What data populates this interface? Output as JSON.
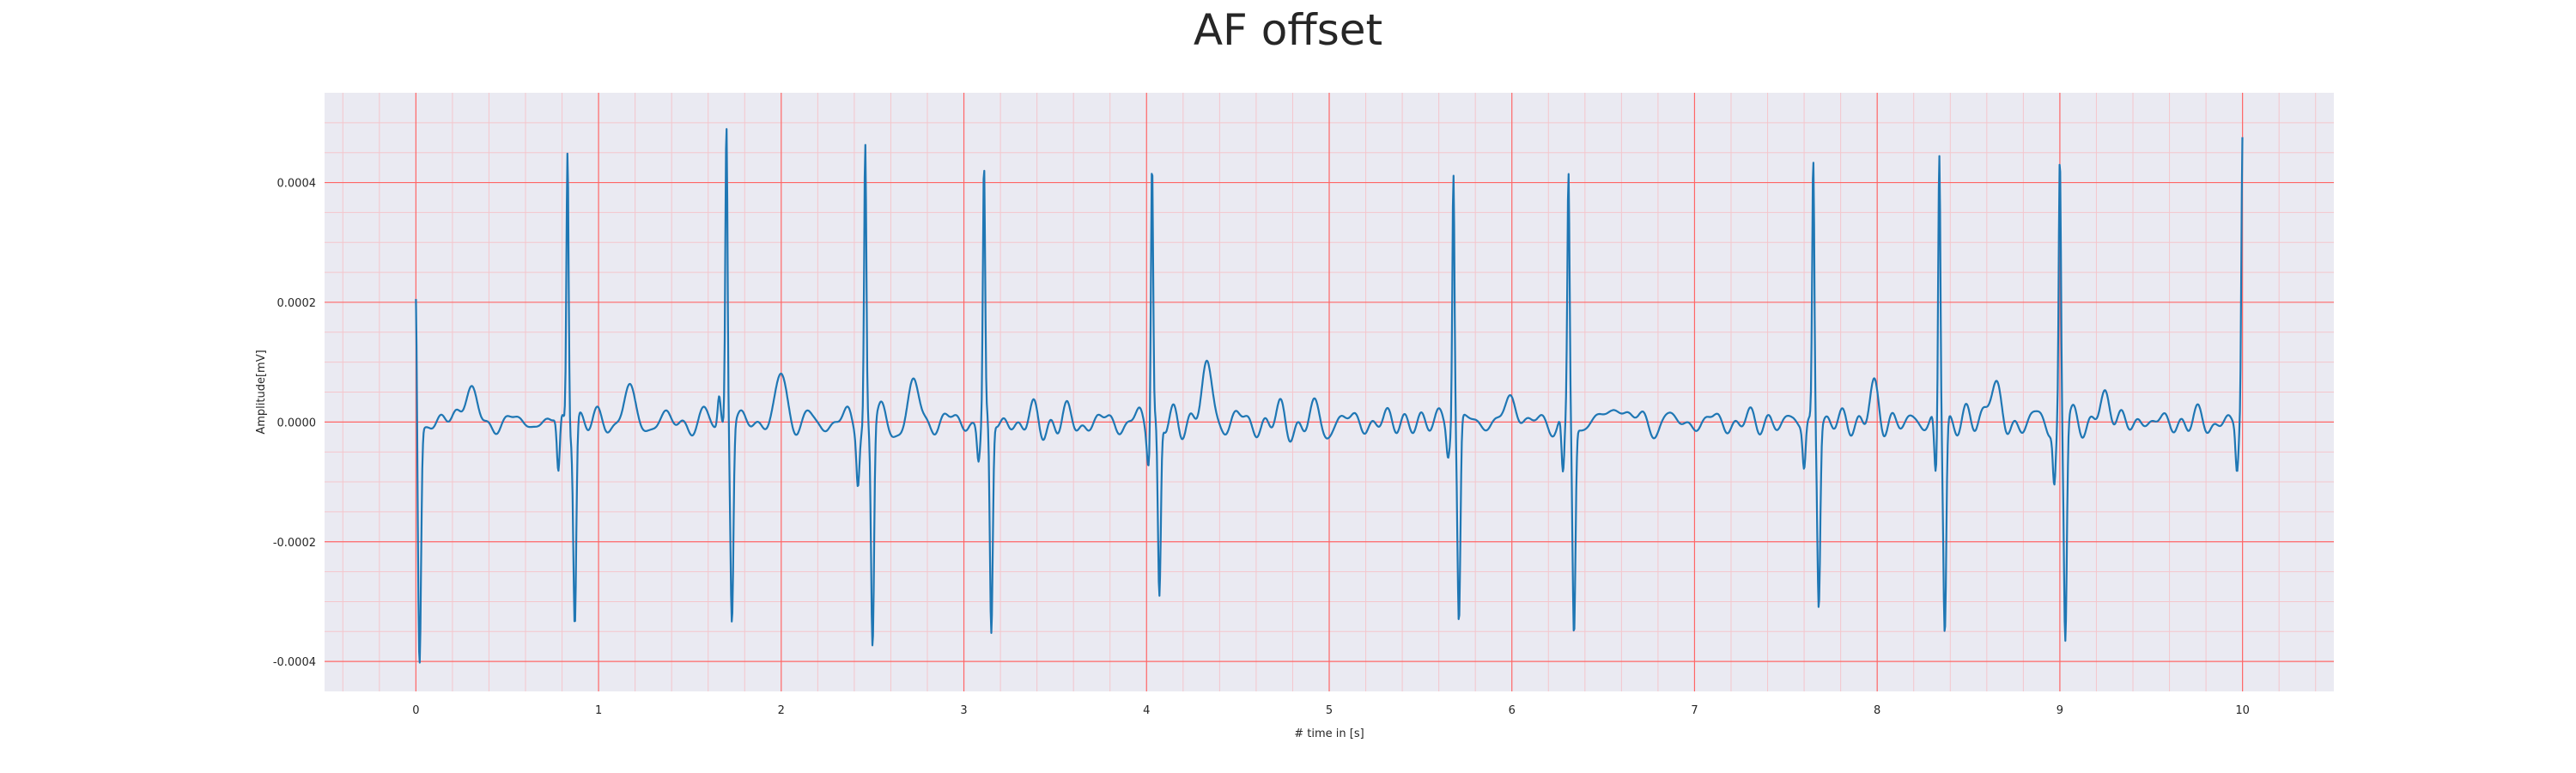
{
  "chart_data": {
    "type": "line",
    "title": "AF offset",
    "xlabel": "# time in [s]",
    "ylabel": "Amplitude[mV]",
    "xlim": [
      -0.5,
      10.5
    ],
    "ylim": [
      -0.00045,
      0.00055
    ],
    "x_ticks": [
      0,
      1,
      2,
      3,
      4,
      5,
      6,
      7,
      8,
      9,
      10
    ],
    "x_tick_labels": [
      "0",
      "1",
      "2",
      "3",
      "4",
      "5",
      "6",
      "7",
      "8",
      "9",
      "10"
    ],
    "y_ticks": [
      -0.0004,
      -0.0002,
      0.0,
      0.0002,
      0.0004
    ],
    "y_tick_labels": [
      "-0.0004",
      "-0.0002",
      "0.0000",
      "0.0002",
      "0.0004"
    ],
    "grid": "major and minor",
    "colors": {
      "line": "#1f77b4",
      "plot_background": "#eaeaf2",
      "major_grid": "#ff6666",
      "minor_grid": "#f4c6cc"
    },
    "series": [
      {
        "peaks": [
          {
            "t": 0.0,
            "v": 0.00021,
            "w": 0.005
          },
          {
            "t": 0.02,
            "v": -0.0004,
            "w": 0.008
          },
          {
            "t": 0.28,
            "v": 6.5e-05,
            "w": 0.03
          },
          {
            "t": 0.78,
            "v": -9.5e-05,
            "w": 0.008
          },
          {
            "t": 0.83,
            "v": 0.000465,
            "w": 0.006
          },
          {
            "t": 0.87,
            "v": -0.00033,
            "w": 0.008
          },
          {
            "t": 1.16,
            "v": 4.5e-05,
            "w": 0.03
          },
          {
            "t": 1.66,
            "v": 5e-05,
            "w": 0.008
          },
          {
            "t": 1.7,
            "v": 0.000505,
            "w": 0.006
          },
          {
            "t": 1.73,
            "v": -0.000325,
            "w": 0.008
          },
          {
            "t": 2.0,
            "v": 7e-05,
            "w": 0.03
          },
          {
            "t": 2.42,
            "v": -8e-05,
            "w": 0.008
          },
          {
            "t": 2.46,
            "v": 0.000465,
            "w": 0.006
          },
          {
            "t": 2.5,
            "v": -0.00037,
            "w": 0.008
          },
          {
            "t": 2.74,
            "v": 5e-05,
            "w": 0.03
          },
          {
            "t": 3.08,
            "v": -5.5e-05,
            "w": 0.008
          },
          {
            "t": 3.11,
            "v": 0.000425,
            "w": 0.006
          },
          {
            "t": 3.15,
            "v": -0.000365,
            "w": 0.008
          },
          {
            "t": 4.01,
            "v": -4.5e-05,
            "w": 0.008
          },
          {
            "t": 4.03,
            "v": 0.00045,
            "w": 0.006
          },
          {
            "t": 4.07,
            "v": -0.000305,
            "w": 0.008
          },
          {
            "t": 4.33,
            "v": 8.5e-05,
            "w": 0.03
          },
          {
            "t": 5.65,
            "v": -4e-05,
            "w": 0.008
          },
          {
            "t": 5.68,
            "v": 0.00043,
            "w": 0.006
          },
          {
            "t": 5.71,
            "v": -0.00034,
            "w": 0.008
          },
          {
            "t": 6.0,
            "v": 4e-05,
            "w": 0.03
          },
          {
            "t": 6.28,
            "v": -0.000105,
            "w": 0.008
          },
          {
            "t": 6.31,
            "v": 0.0004,
            "w": 0.006
          },
          {
            "t": 6.34,
            "v": -0.00035,
            "w": 0.008
          },
          {
            "t": 6.58,
            "v": 4e-05,
            "w": 0.03
          },
          {
            "t": 7.6,
            "v": -7e-05,
            "w": 0.008
          },
          {
            "t": 7.65,
            "v": 0.000435,
            "w": 0.006
          },
          {
            "t": 7.68,
            "v": -0.0003,
            "w": 0.008
          },
          {
            "t": 7.98,
            "v": 4e-05,
            "w": 0.03
          },
          {
            "t": 8.32,
            "v": -9.5e-05,
            "w": 0.008
          },
          {
            "t": 8.34,
            "v": 0.000455,
            "w": 0.006
          },
          {
            "t": 8.37,
            "v": -0.00035,
            "w": 0.008
          },
          {
            "t": 8.62,
            "v": 6e-05,
            "w": 0.03
          },
          {
            "t": 8.97,
            "v": -9.5e-05,
            "w": 0.008
          },
          {
            "t": 9.0,
            "v": 0.00044,
            "w": 0.006
          },
          {
            "t": 9.03,
            "v": -0.00036,
            "w": 0.008
          },
          {
            "t": 9.25,
            "v": 4e-05,
            "w": 0.03
          },
          {
            "t": 9.97,
            "v": -8e-05,
            "w": 0.008
          },
          {
            "t": 10.0,
            "v": 0.000465,
            "w": 0.006
          }
        ]
      }
    ]
  }
}
